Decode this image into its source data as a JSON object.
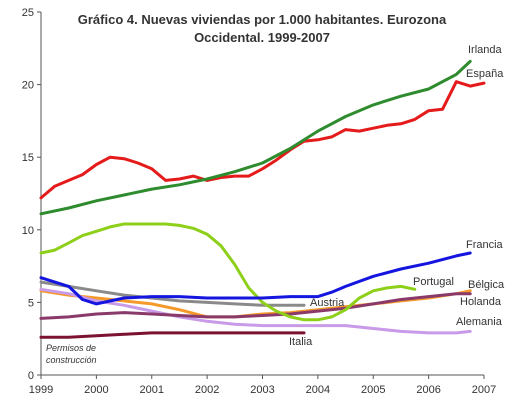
{
  "chart_data": {
    "type": "line",
    "title_lines": [
      "Gráfico 4. Nuevas viviendas por 1.000 habitantes. Eurozona",
      "Occidental. 1999-2007"
    ],
    "xlabel": "",
    "ylabel": "",
    "x_ticks": [
      "1999",
      "2000",
      "2001",
      "2002",
      "2003",
      "2004",
      "2005",
      "2006",
      "2007"
    ],
    "y_ticks": [
      "0",
      "5",
      "10",
      "15",
      "20",
      "25"
    ],
    "xlim": [
      1999,
      2007
    ],
    "ylim": [
      0,
      25
    ],
    "grid": false,
    "legend": "none",
    "annotation": [
      "Permisos de",
      "construcción"
    ],
    "series": [
      {
        "name": "Irlanda",
        "color": "#2e8b2e",
        "x": [
          1999,
          1999.5,
          2000,
          2000.5,
          2001,
          2001.5,
          2002,
          2002.5,
          2003,
          2003.5,
          2004,
          2004.5,
          2005,
          2005.5,
          2006,
          2006.5,
          2006.75
        ],
        "y": [
          11.1,
          11.5,
          12.0,
          12.4,
          12.8,
          13.1,
          13.5,
          14.0,
          14.6,
          15.6,
          16.8,
          17.8,
          18.6,
          19.2,
          19.7,
          20.7,
          21.6
        ]
      },
      {
        "name": "España",
        "color": "#e51a1a",
        "x": [
          1999,
          1999.25,
          1999.5,
          1999.75,
          2000,
          2000.25,
          2000.5,
          2000.75,
          2001,
          2001.25,
          2001.5,
          2001.75,
          2002,
          2002.25,
          2002.5,
          2002.75,
          2003,
          2003.25,
          2003.5,
          2003.75,
          2004,
          2004.25,
          2004.5,
          2004.75,
          2005,
          2005.25,
          2005.5,
          2005.75,
          2006,
          2006.25,
          2006.5,
          2006.75,
          2007
        ],
        "y": [
          12.2,
          13.0,
          13.4,
          13.8,
          14.5,
          15.0,
          14.9,
          14.6,
          14.2,
          13.4,
          13.5,
          13.7,
          13.4,
          13.6,
          13.7,
          13.7,
          14.2,
          14.8,
          15.5,
          16.1,
          16.2,
          16.4,
          16.9,
          16.8,
          17.0,
          17.2,
          17.3,
          17.6,
          18.2,
          18.3,
          20.2,
          19.9,
          20.1
        ]
      },
      {
        "name": "Francia",
        "color": "#1515e0",
        "x": [
          1999,
          1999.25,
          1999.5,
          1999.75,
          2000,
          2000.5,
          2001,
          2001.5,
          2002,
          2002.5,
          2003,
          2003.5,
          2004,
          2004.25,
          2004.5,
          2005,
          2005.5,
          2006,
          2006.5,
          2006.75
        ],
        "y": [
          6.7,
          6.4,
          6.1,
          5.2,
          4.9,
          5.3,
          5.4,
          5.4,
          5.3,
          5.3,
          5.3,
          5.4,
          5.4,
          5.7,
          6.1,
          6.8,
          7.3,
          7.7,
          8.2,
          8.4
        ]
      },
      {
        "name": "Portugal",
        "color": "#8ecf1a",
        "x": [
          1999,
          1999.25,
          1999.5,
          1999.75,
          2000,
          2000.25,
          2000.5,
          2000.75,
          2001,
          2001.25,
          2001.5,
          2001.75,
          2002,
          2002.25,
          2002.5,
          2002.75,
          2003,
          2003.25,
          2003.5,
          2003.75,
          2004,
          2004.25,
          2004.5,
          2004.75,
          2005,
          2005.25,
          2005.5,
          2005.75
        ],
        "y": [
          8.4,
          8.6,
          9.1,
          9.6,
          9.9,
          10.2,
          10.4,
          10.4,
          10.4,
          10.4,
          10.3,
          10.1,
          9.7,
          8.9,
          7.6,
          6.0,
          5.0,
          4.4,
          4.0,
          3.8,
          3.8,
          4.0,
          4.5,
          5.3,
          5.8,
          6.0,
          6.1,
          5.9
        ]
      },
      {
        "name": "Bélgica",
        "color": "#8a3a6a",
        "x": [
          1999,
          1999.5,
          2000,
          2000.5,
          2001,
          2001.5,
          2002,
          2002.5,
          2003,
          2003.5,
          2004,
          2004.5,
          2005,
          2005.5,
          2006,
          2006.5,
          2006.75
        ],
        "y": [
          3.9,
          4.0,
          4.2,
          4.3,
          4.2,
          4.1,
          4.0,
          4.0,
          4.1,
          4.2,
          4.4,
          4.6,
          4.9,
          5.2,
          5.4,
          5.6,
          5.6
        ]
      },
      {
        "name": "Austria",
        "color": "#8a8a8a",
        "x": [
          1999,
          1999.5,
          2000,
          2000.5,
          2001,
          2001.5,
          2002,
          2002.5,
          2003,
          2003.5,
          2003.75
        ],
        "y": [
          6.4,
          6.1,
          5.8,
          5.5,
          5.3,
          5.1,
          5.0,
          4.9,
          4.8,
          4.8,
          4.8
        ]
      },
      {
        "name": "Holanda",
        "color": "#f59a2a",
        "x": [
          1999,
          1999.5,
          2000,
          2000.5,
          2001,
          2001.5,
          2002,
          2002.5,
          2003,
          2003.5,
          2004,
          2004.5,
          2005,
          2005.5,
          2006,
          2006.5,
          2006.75
        ],
        "y": [
          5.8,
          5.5,
          5.3,
          5.1,
          4.9,
          4.5,
          4.0,
          4.0,
          4.2,
          4.3,
          4.5,
          4.7,
          4.9,
          5.1,
          5.3,
          5.6,
          5.8
        ]
      },
      {
        "name": "Alemania",
        "color": "#c89ae8",
        "x": [
          1999,
          1999.5,
          2000,
          2000.5,
          2001,
          2001.5,
          2002,
          2002.5,
          2003,
          2003.5,
          2004,
          2004.5,
          2005,
          2005.5,
          2006,
          2006.5,
          2006.75
        ],
        "y": [
          5.9,
          5.6,
          5.1,
          4.8,
          4.4,
          4.0,
          3.7,
          3.5,
          3.4,
          3.4,
          3.4,
          3.4,
          3.2,
          3.0,
          2.9,
          2.9,
          3.0
        ]
      },
      {
        "name": "Italia",
        "color": "#7a1230",
        "x": [
          1999,
          1999.5,
          2000,
          2000.5,
          2001,
          2001.5,
          2002,
          2002.5,
          2003,
          2003.5,
          2003.75
        ],
        "y": [
          2.6,
          2.6,
          2.7,
          2.8,
          2.9,
          2.9,
          2.9,
          2.9,
          2.9,
          2.9,
          2.9
        ]
      }
    ]
  }
}
